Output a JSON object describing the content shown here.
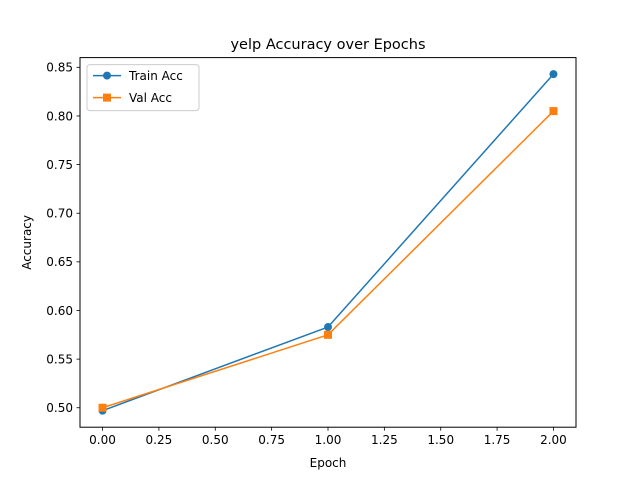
{
  "chart_data": {
    "type": "line",
    "title": "yelp Accuracy over Epochs",
    "xlabel": "Epoch",
    "ylabel": "Accuracy",
    "xlim": [
      -0.1,
      2.1
    ],
    "ylim": [
      0.48,
      0.86
    ],
    "xticks": [
      0.0,
      0.25,
      0.5,
      0.75,
      1.0,
      1.25,
      1.5,
      1.75,
      2.0
    ],
    "xtick_labels": [
      "0.00",
      "0.25",
      "0.50",
      "0.75",
      "1.00",
      "1.25",
      "1.50",
      "1.75",
      "2.00"
    ],
    "yticks": [
      0.5,
      0.55,
      0.6,
      0.65,
      0.7,
      0.75,
      0.8,
      0.85
    ],
    "ytick_labels": [
      "0.50",
      "0.55",
      "0.60",
      "0.65",
      "0.70",
      "0.75",
      "0.80",
      "0.85"
    ],
    "grid": false,
    "legend_position": "top-left",
    "series": [
      {
        "name": "Train Acc",
        "x": [
          0,
          1,
          2
        ],
        "values": [
          0.497,
          0.583,
          0.843
        ],
        "color": "#1f77b4",
        "marker": "circle"
      },
      {
        "name": "Val Acc",
        "x": [
          0,
          1,
          2
        ],
        "values": [
          0.5,
          0.575,
          0.805
        ],
        "color": "#ff7f0e",
        "marker": "square"
      }
    ]
  }
}
